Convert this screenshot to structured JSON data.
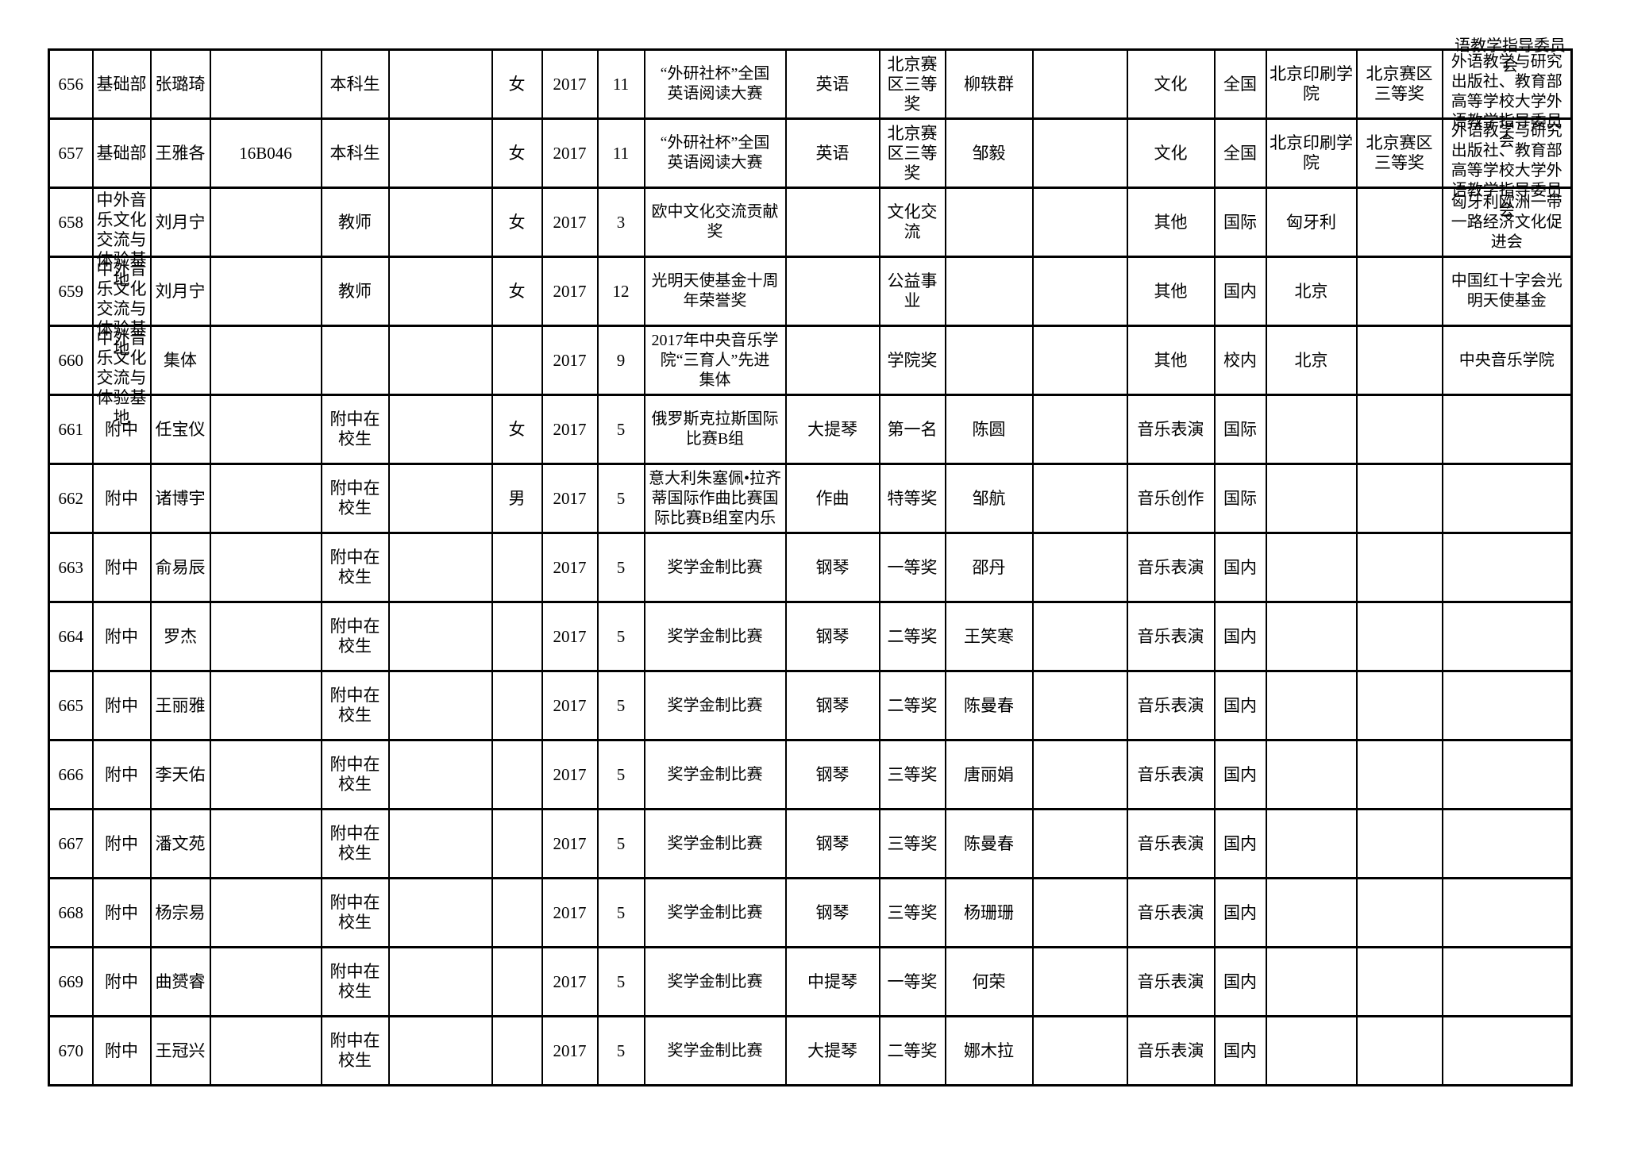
{
  "table": {
    "bleed_text_top": "语教学指导委员\n会",
    "rows": [
      {
        "cells": [
          "656",
          "基础部",
          "张璐琦",
          "",
          "本科生",
          "",
          "女",
          "2017",
          "11",
          "“外研社杯”全国\n英语阅读大赛",
          "英语",
          "北京赛\n区三等\n奖",
          "柳轶群",
          "",
          "文化",
          "全国",
          "北京印刷学\n院",
          "北京赛区\n三等奖",
          "外语教学与研究\n出版社、教育部\n高等学校大学外\n语教学指导委员\n会"
        ]
      },
      {
        "cells": [
          "657",
          "基础部",
          "王雅各",
          "16B046",
          "本科生",
          "",
          "女",
          "2017",
          "11",
          "“外研社杯”全国\n英语阅读大赛",
          "英语",
          "北京赛\n区三等\n奖",
          "邹毅",
          "",
          "文化",
          "全国",
          "北京印刷学\n院",
          "北京赛区\n三等奖",
          "外语教学与研究\n出版社、教育部\n高等学校大学外\n语教学指导委员\n会"
        ]
      },
      {
        "cells": [
          "658",
          "中外音\n乐文化\n交流与\n体验基\n地",
          "刘月宁",
          "",
          "教师",
          "",
          "女",
          "2017",
          "3",
          "欧中文化交流贡献\n奖",
          "",
          "文化交\n流",
          "",
          "",
          "其他",
          "国际",
          "匈牙利",
          "",
          "匈牙利欧洲一带\n一路经济文化促\n进会"
        ]
      },
      {
        "cells": [
          "659",
          "中外音\n乐文化\n交流与\n体验基\n地",
          "刘月宁",
          "",
          "教师",
          "",
          "女",
          "2017",
          "12",
          "光明天使基金十周\n年荣誉奖",
          "",
          "公益事\n业",
          "",
          "",
          "其他",
          "国内",
          "北京",
          "",
          "中国红十字会光\n明天使基金"
        ]
      },
      {
        "cells": [
          "660",
          "中外音\n乐文化\n交流与\n体验基\n地",
          "集体",
          "",
          "",
          "",
          "",
          "2017",
          "9",
          "2017年中央音乐学\n院“三育人”先进\n集体",
          "",
          "学院奖",
          "",
          "",
          "其他",
          "校内",
          "北京",
          "",
          "中央音乐学院"
        ]
      },
      {
        "cells": [
          "661",
          "附中",
          "任宝仪",
          "",
          "附中在\n校生",
          "",
          "女",
          "2017",
          "5",
          "俄罗斯克拉斯国际\n比赛B组",
          "大提琴",
          "第一名",
          "陈圆",
          "",
          "音乐表演",
          "国际",
          "",
          "",
          ""
        ]
      },
      {
        "cells": [
          "662",
          "附中",
          "诸博宇",
          "",
          "附中在\n校生",
          "",
          "男",
          "2017",
          "5",
          "意大利朱塞佩•拉齐\n蒂国际作曲比赛国\n际比赛B组室内乐",
          "作曲",
          "特等奖",
          "邹航",
          "",
          "音乐创作",
          "国际",
          "",
          "",
          ""
        ]
      },
      {
        "cells": [
          "663",
          "附中",
          "俞易辰",
          "",
          "附中在\n校生",
          "",
          "",
          "2017",
          "5",
          "奖学金制比赛",
          "钢琴",
          "一等奖",
          "邵丹",
          "",
          "音乐表演",
          "国内",
          "",
          "",
          ""
        ]
      },
      {
        "cells": [
          "664",
          "附中",
          "罗杰",
          "",
          "附中在\n校生",
          "",
          "",
          "2017",
          "5",
          "奖学金制比赛",
          "钢琴",
          "二等奖",
          "王笑寒",
          "",
          "音乐表演",
          "国内",
          "",
          "",
          ""
        ]
      },
      {
        "cells": [
          "665",
          "附中",
          "王丽雅",
          "",
          "附中在\n校生",
          "",
          "",
          "2017",
          "5",
          "奖学金制比赛",
          "钢琴",
          "二等奖",
          "陈曼春",
          "",
          "音乐表演",
          "国内",
          "",
          "",
          ""
        ]
      },
      {
        "cells": [
          "666",
          "附中",
          "李天佑",
          "",
          "附中在\n校生",
          "",
          "",
          "2017",
          "5",
          "奖学金制比赛",
          "钢琴",
          "三等奖",
          "唐丽娟",
          "",
          "音乐表演",
          "国内",
          "",
          "",
          ""
        ]
      },
      {
        "cells": [
          "667",
          "附中",
          "潘文苑",
          "",
          "附中在\n校生",
          "",
          "",
          "2017",
          "5",
          "奖学金制比赛",
          "钢琴",
          "三等奖",
          "陈曼春",
          "",
          "音乐表演",
          "国内",
          "",
          "",
          ""
        ]
      },
      {
        "cells": [
          "668",
          "附中",
          "杨宗易",
          "",
          "附中在\n校生",
          "",
          "",
          "2017",
          "5",
          "奖学金制比赛",
          "钢琴",
          "三等奖",
          "杨珊珊",
          "",
          "音乐表演",
          "国内",
          "",
          "",
          ""
        ]
      },
      {
        "cells": [
          "669",
          "附中",
          "曲赟睿",
          "",
          "附中在\n校生",
          "",
          "",
          "2017",
          "5",
          "奖学金制比赛",
          "中提琴",
          "一等奖",
          "何荣",
          "",
          "音乐表演",
          "国内",
          "",
          "",
          ""
        ]
      },
      {
        "cells": [
          "670",
          "附中",
          "王冠兴",
          "",
          "附中在\n校生",
          "",
          "",
          "2017",
          "5",
          "奖学金制比赛",
          "大提琴",
          "二等奖",
          "娜木拉",
          "",
          "音乐表演",
          "国内",
          "",
          "",
          ""
        ]
      }
    ]
  }
}
